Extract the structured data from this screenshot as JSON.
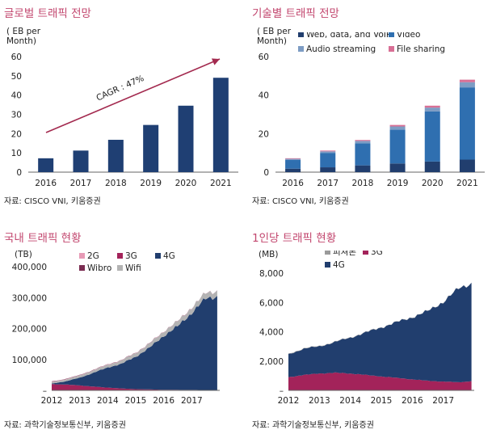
{
  "colors": {
    "title": "#c2466e",
    "navy": "#1f3f73",
    "dark_navy": "#213e6e",
    "blue": "#2f6fb0",
    "light_blue": "#7d9cc4",
    "pink": "#d86f95",
    "gray": "#9a9a9a",
    "magenta": "#a3235a",
    "lightpink": "#e79ab6",
    "maroon": "#7b2d52",
    "arrow": "#a32a4f"
  },
  "charts": [
    {
      "title": "글로벌 트래픽 전망",
      "unit": "( EB per\nMonth)",
      "source": "자료: CISCO VNI, 키움증권",
      "chart_data": {
        "type": "bar",
        "categories": [
          "2016",
          "2017",
          "2018",
          "2019",
          "2020",
          "2021"
        ],
        "values": [
          7.2,
          11.2,
          16.8,
          24.5,
          34.5,
          49.0
        ],
        "ylim": [
          0,
          60
        ],
        "yticks": [
          0,
          10,
          20,
          30,
          40,
          50,
          60
        ],
        "annotation": "CAGR : 47%",
        "color": "#1f3f73"
      }
    },
    {
      "title": "기술별 트래픽 전망",
      "unit": "( EB per\nMonth)",
      "source": "자료: CISCO VNI, 키움증권",
      "chart_data": {
        "type": "bar",
        "stacked": true,
        "categories": [
          "2016",
          "2017",
          "2018",
          "2019",
          "2020",
          "2021"
        ],
        "ylim": [
          0,
          60
        ],
        "yticks": [
          0,
          20,
          40,
          60
        ],
        "series": [
          {
            "name": "Web, data, and VoIP",
            "values": [
              1.8,
              2.5,
              3.5,
              4.5,
              5.5,
              6.5
            ],
            "color": "#213e6e"
          },
          {
            "name": "Video",
            "values": [
              4.6,
              7.5,
              11.5,
              17.5,
              26.0,
              37.5
            ],
            "color": "#2f6fb0"
          },
          {
            "name": "Audio streaming",
            "values": [
              0.5,
              0.8,
              1.2,
              1.7,
              2.0,
              2.7
            ],
            "color": "#7d9cc4"
          },
          {
            "name": "File sharing",
            "values": [
              0.3,
              0.4,
              0.5,
              0.8,
              1.0,
              1.3
            ],
            "color": "#d86f95"
          }
        ]
      }
    },
    {
      "title": "국내 트래픽 현황",
      "unit": "(TB)",
      "source": "자료: 과학기술정보통신부, 키움증권",
      "chart_data": {
        "type": "area",
        "stacked": true,
        "x": [
          "2012",
          "2013",
          "2014",
          "2015",
          "2016",
          "2017"
        ],
        "x_range": [
          2012,
          2018
        ],
        "ylim": [
          0,
          400000
        ],
        "yticks": [
          0,
          100000,
          200000,
          300000,
          400000
        ],
        "ytick_labels": [
          "–",
          "100,000",
          "200,000",
          "300,000",
          "400,000"
        ],
        "series": [
          {
            "name": "3G",
            "color": "#a3235a",
            "points": [
              [
                2012,
                20000
              ],
              [
                2012.5,
                19000
              ],
              [
                2013,
                16000
              ],
              [
                2013.5,
                12000
              ],
              [
                2014,
                9000
              ],
              [
                2014.5,
                6000
              ],
              [
                2015,
                4000
              ],
              [
                2015.5,
                3000
              ],
              [
                2016,
                2000
              ],
              [
                2017,
                1500
              ],
              [
                2018,
                1000
              ]
            ]
          },
          {
            "name": "4G",
            "color": "#213e6e",
            "points": [
              [
                2012,
                2000
              ],
              [
                2012.5,
                10000
              ],
              [
                2013,
                25000
              ],
              [
                2013.5,
                45000
              ],
              [
                2014,
                65000
              ],
              [
                2014.5,
                80000
              ],
              [
                2015,
                105000
              ],
              [
                2015.5,
                135000
              ],
              [
                2016,
                175000
              ],
              [
                2016.5,
                205000
              ],
              [
                2017,
                250000
              ],
              [
                2017.5,
                295000
              ],
              [
                2018,
                305000
              ]
            ]
          },
          {
            "name": "Wifi",
            "color": "#b3b3b3",
            "points": [
              [
                2012,
                5000
              ],
              [
                2013,
                7000
              ],
              [
                2014,
                9000
              ],
              [
                2015,
                12000
              ],
              [
                2016,
                14000
              ],
              [
                2017,
                17000
              ],
              [
                2018,
                18000
              ]
            ]
          },
          {
            "name": "2G",
            "color": "#e79ab6",
            "points": [
              [
                2012,
                1000
              ],
              [
                2018,
                300
              ]
            ]
          },
          {
            "name": "Wibro",
            "color": "#7b2d52",
            "points": [
              [
                2012,
                1000
              ],
              [
                2018,
                300
              ]
            ]
          }
        ],
        "legend": [
          {
            "name": "2G",
            "color": "#e79ab6"
          },
          {
            "name": "3G",
            "color": "#a3235a"
          },
          {
            "name": "4G",
            "color": "#213e6e"
          },
          {
            "name": "Wibro",
            "color": "#7b2d52"
          },
          {
            "name": "Wifi",
            "color": "#b3b3b3"
          }
        ]
      }
    },
    {
      "title": "1인당 트래픽 현황",
      "unit": "(MB)",
      "source": "자료: 과학기술정보통신부, 키움증권",
      "chart_data": {
        "type": "area",
        "stacked": true,
        "x": [
          "2012",
          "2013",
          "2014",
          "2015",
          "2016",
          "2017"
        ],
        "x_range": [
          2012,
          2018
        ],
        "ylim": [
          0,
          8000
        ],
        "yticks": [
          0,
          2000,
          4000,
          6000,
          8000
        ],
        "ytick_labels": [
          "–",
          "2,000",
          "4,000",
          "6,000",
          "8,000"
        ],
        "series": [
          {
            "name": "3G",
            "color": "#a3235a",
            "points": [
              [
                2012,
                900
              ],
              [
                2012.5,
                1050
              ],
              [
                2013,
                1150
              ],
              [
                2013.5,
                1200
              ],
              [
                2014,
                1150
              ],
              [
                2014.5,
                1050
              ],
              [
                2015,
                950
              ],
              [
                2015.5,
                850
              ],
              [
                2016,
                750
              ],
              [
                2016.5,
                650
              ],
              [
                2017,
                600
              ],
              [
                2017.5,
                550
              ],
              [
                2018,
                650
              ]
            ]
          },
          {
            "name": "4G",
            "color": "#213e6e",
            "points": [
              [
                2012,
                1550
              ],
              [
                2012.5,
                1800
              ],
              [
                2013,
                1850
              ],
              [
                2013.5,
                2100
              ],
              [
                2014,
                2450
              ],
              [
                2014.5,
                2900
              ],
              [
                2015,
                3350
              ],
              [
                2015.5,
                3800
              ],
              [
                2016,
                4250
              ],
              [
                2016.5,
                4750
              ],
              [
                2017,
                5450
              ],
              [
                2017.5,
                6400
              ],
              [
                2018,
                6750
              ]
            ]
          },
          {
            "name": "피쳐폰",
            "color": "#9a9a9a",
            "points": [
              [
                2012,
                30
              ],
              [
                2018,
                10
              ]
            ]
          }
        ],
        "legend": [
          {
            "name": "피쳐폰",
            "color": "#9a9a9a"
          },
          {
            "name": "3G",
            "color": "#a3235a"
          },
          {
            "name": "4G",
            "color": "#213e6e"
          }
        ]
      }
    }
  ]
}
